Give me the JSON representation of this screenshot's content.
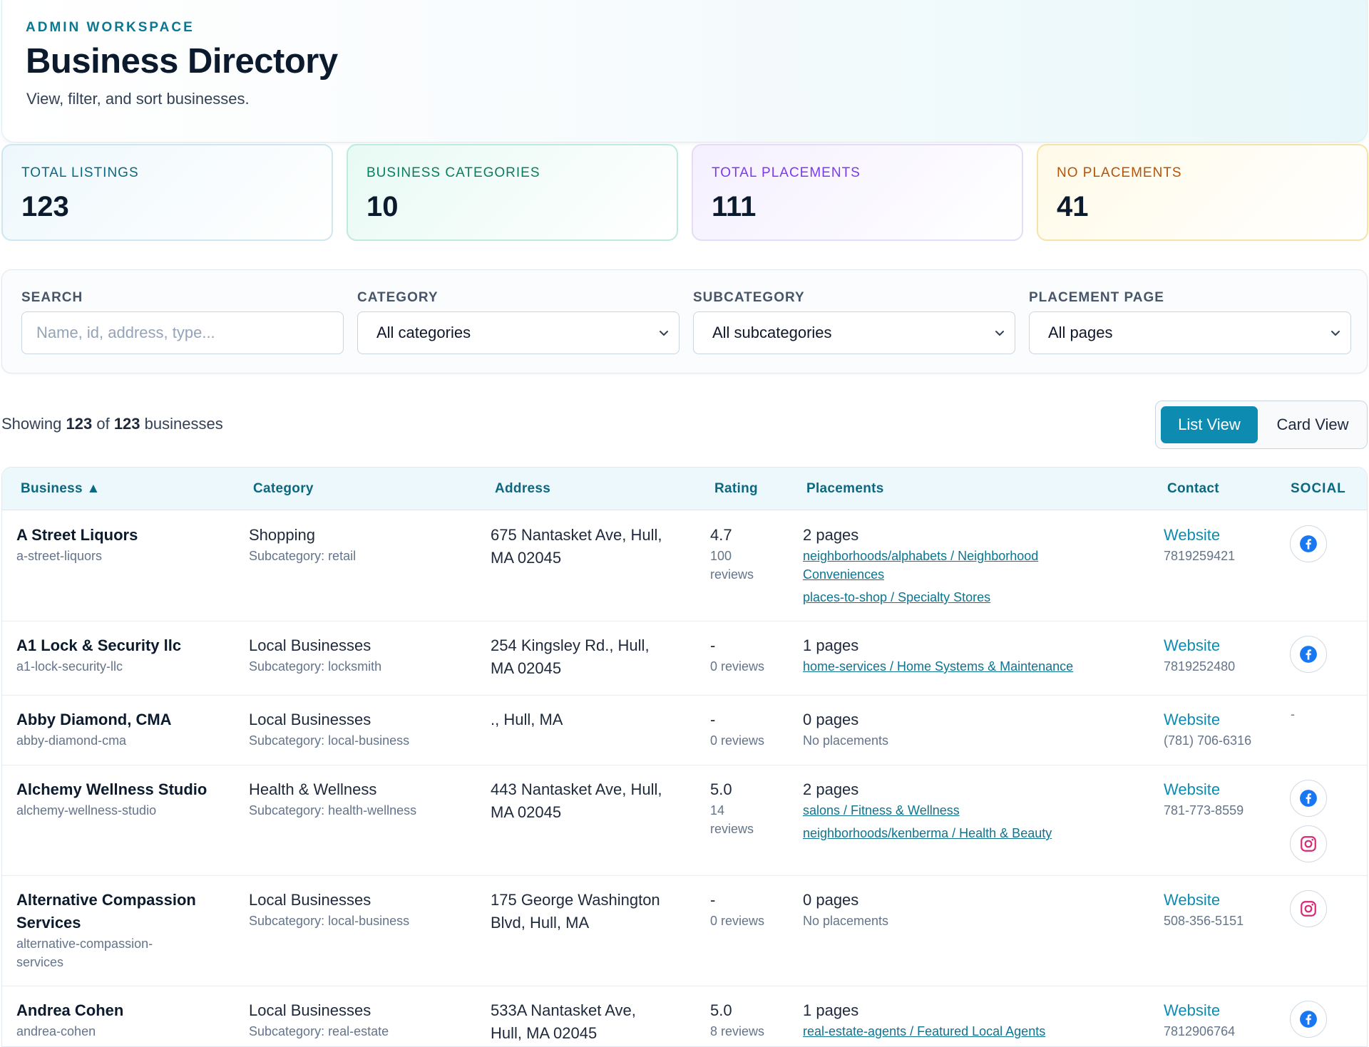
{
  "header": {
    "eyebrow": "ADMIN WORKSPACE",
    "title": "Business Directory",
    "subtitle": "View, filter, and sort businesses."
  },
  "stats": [
    {
      "label": "TOTAL LISTINGS",
      "value": "123"
    },
    {
      "label": "BUSINESS CATEGORIES",
      "value": "10"
    },
    {
      "label": "TOTAL PLACEMENTS",
      "value": "111"
    },
    {
      "label": "NO PLACEMENTS",
      "value": "41"
    }
  ],
  "filters": {
    "search_label": "SEARCH",
    "search_placeholder": "Name, id, address, type...",
    "category_label": "CATEGORY",
    "category_value": "All categories",
    "subcategory_label": "SUBCATEGORY",
    "subcategory_value": "All subcategories",
    "placement_label": "PLACEMENT PAGE",
    "placement_value": "All pages"
  },
  "results": {
    "prefix": "Showing ",
    "shown": "123",
    "middle": " of ",
    "total": "123",
    "suffix": " businesses"
  },
  "view_toggle": {
    "list": "List View",
    "card": "Card View",
    "active": "List View"
  },
  "table": {
    "columns": {
      "business": "Business",
      "sort_indicator": "▲",
      "category": "Category",
      "address": "Address",
      "rating": "Rating",
      "placements": "Placements",
      "contact": "Contact",
      "social": "SOCIAL"
    },
    "rows": [
      {
        "name": "A Street Liquors",
        "slug": "a-street-liquors",
        "category": "Shopping",
        "subcategory": "Subcategory: retail",
        "address_1": "675 Nantasket Ave, Hull,",
        "address_2": "MA 02045",
        "rating": "4.7",
        "reviews_1": "100",
        "reviews_2": "reviews",
        "pages": "2 pages",
        "placement_1a": "neighborhoods/alphabets / Neighborhood",
        "placement_1b": "Conveniences",
        "placement_2": "places-to-shop / Specialty Stores",
        "website": "Website",
        "phone": "7819259421",
        "social": [
          "facebook-icon"
        ]
      },
      {
        "name": "A1 Lock & Security llc",
        "slug": "a1-lock-security-llc",
        "category": "Local Businesses",
        "subcategory": "Subcategory: locksmith",
        "address_1": "254 Kingsley Rd., Hull,",
        "address_2": "MA 02045",
        "rating": "-",
        "reviews": "0 reviews",
        "pages": "1 pages",
        "placement_1": "home-services / Home Systems & Maintenance",
        "website": "Website",
        "phone": "7819252480",
        "social": [
          "facebook-icon"
        ]
      },
      {
        "name": "Abby Diamond, CMA",
        "slug": "abby-diamond-cma",
        "category": "Local Businesses",
        "subcategory": "Subcategory: local-business",
        "address_1": "., Hull, MA",
        "rating": "-",
        "reviews": "0 reviews",
        "pages": "0 pages",
        "no_placements": "No placements",
        "website": "Website",
        "phone": "(781) 706-6316",
        "social_empty": "-"
      },
      {
        "name": "Alchemy Wellness Studio",
        "slug": "alchemy-wellness-studio",
        "category": "Health & Wellness",
        "subcategory": "Subcategory: health-wellness",
        "address_1": "443 Nantasket Ave, Hull,",
        "address_2": "MA 02045",
        "rating": "5.0",
        "reviews_1": "14",
        "reviews_2": "reviews",
        "pages": "2 pages",
        "placement_1": "salons / Fitness & Wellness",
        "placement_2": "neighborhoods/kenberma / Health & Beauty",
        "website": "Website",
        "phone": "781-773-8559",
        "social": [
          "facebook-icon",
          "instagram-icon"
        ]
      },
      {
        "name_1": "Alternative Compassion",
        "name_2": "Services",
        "slug_1": "alternative-compassion-",
        "slug_2": "services",
        "category": "Local Businesses",
        "subcategory": "Subcategory: local-business",
        "address_1": "175 George Washington",
        "address_2": "Blvd, Hull, MA",
        "rating": "-",
        "reviews": "0 reviews",
        "pages": "0 pages",
        "no_placements": "No placements",
        "website": "Website",
        "phone": "508-356-5151",
        "social": [
          "instagram-icon"
        ]
      },
      {
        "name": "Andrea Cohen",
        "slug": "andrea-cohen",
        "category": "Local Businesses",
        "subcategory": "Subcategory: real-estate",
        "address_1": "533A Nantasket Ave,",
        "address_2": "Hull, MA 02045",
        "rating": "5.0",
        "reviews": "8 reviews",
        "pages": "1 pages",
        "placement_1": "real-estate-agents / Featured Local Agents",
        "website": "Website",
        "phone": "7812906764",
        "social": [
          "facebook-icon"
        ]
      }
    ]
  },
  "colors": {
    "accent": "#0e8bb0",
    "title": "#0b1a2d",
    "facebook": "#1877f2",
    "instagram": "#d62976"
  }
}
